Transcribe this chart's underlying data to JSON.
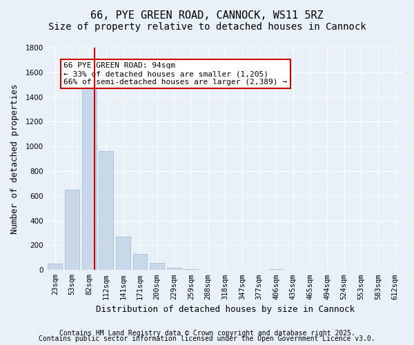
{
  "title_line1": "66, PYE GREEN ROAD, CANNOCK, WS11 5RZ",
  "title_line2": "Size of property relative to detached houses in Cannock",
  "xlabel": "Distribution of detached houses by size in Cannock",
  "ylabel": "Number of detached properties",
  "categories": [
    "23sqm",
    "53sqm",
    "82sqm",
    "112sqm",
    "141sqm",
    "171sqm",
    "200sqm",
    "229sqm",
    "259sqm",
    "288sqm",
    "318sqm",
    "347sqm",
    "377sqm",
    "406sqm",
    "435sqm",
    "465sqm",
    "494sqm",
    "524sqm",
    "553sqm",
    "583sqm",
    "612sqm"
  ],
  "values": [
    50,
    650,
    1500,
    960,
    270,
    130,
    60,
    20,
    5,
    2,
    1,
    0,
    0,
    10,
    0,
    0,
    0,
    0,
    0,
    0,
    0
  ],
  "bar_color": "#c8d8e8",
  "bar_edge_color": "#a0b8cc",
  "vline_x_index": 2.33,
  "vline_color": "#cc0000",
  "annotation_text": "66 PYE GREEN ROAD: 94sqm\n← 33% of detached houses are smaller (1,205)\n66% of semi-detached houses are larger (2,389) →",
  "annotation_box_color": "#ffffff",
  "annotation_edge_color": "#cc0000",
  "bg_color": "#e8f0f8",
  "grid_color": "#ffffff",
  "ylim": [
    0,
    1800
  ],
  "yticks": [
    0,
    200,
    400,
    600,
    800,
    1000,
    1200,
    1400,
    1600,
    1800
  ],
  "footer_line1": "Contains HM Land Registry data © Crown copyright and database right 2025.",
  "footer_line2": "Contains public sector information licensed under the Open Government Licence v3.0.",
  "title_fontsize": 11,
  "subtitle_fontsize": 10,
  "axis_label_fontsize": 9,
  "tick_fontsize": 7.5,
  "annotation_fontsize": 8,
  "footer_fontsize": 7
}
